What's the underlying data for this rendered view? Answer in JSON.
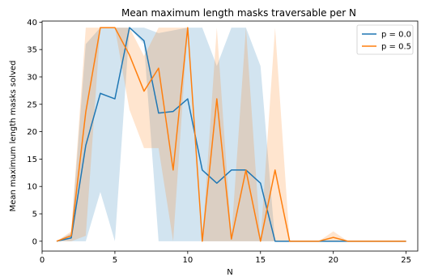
{
  "chart_data": {
    "type": "line",
    "title": "Mean maximum length masks traversable per N",
    "xlabel": "N",
    "ylabel": "Mean maximum length masks solved",
    "xlim": [
      0,
      25.8
    ],
    "ylim": [
      -1.8,
      40.2
    ],
    "xticks": [
      0,
      5,
      10,
      15,
      20,
      25
    ],
    "yticks": [
      0,
      5,
      10,
      15,
      20,
      25,
      30,
      35,
      40
    ],
    "grid": false,
    "legend_position": "top-right",
    "x": [
      1,
      2,
      3,
      4,
      5,
      6,
      7,
      8,
      9,
      10,
      11,
      12,
      13,
      14,
      15,
      16,
      17,
      18,
      19,
      20,
      21,
      22,
      23,
      24,
      25
    ],
    "series": [
      {
        "name": "p = 0.0",
        "color": "#1f77b4",
        "values": [
          0,
          0.6,
          17.5,
          27,
          26,
          39,
          36.6,
          23.4,
          23.7,
          26,
          13,
          10.6,
          13,
          13,
          10.6,
          0,
          0,
          0,
          0,
          0,
          0,
          0,
          0,
          0,
          0
        ],
        "band_lower": [
          0,
          0,
          0,
          9,
          0,
          39,
          36,
          0,
          0,
          0,
          0,
          0,
          0,
          0,
          0,
          0,
          0,
          0,
          0,
          0,
          0,
          0,
          0,
          0,
          0
        ],
        "band_upper": [
          0,
          1.5,
          36,
          39,
          39,
          39,
          39,
          38,
          38.5,
          39,
          39,
          32,
          39,
          39,
          32,
          0,
          0,
          0,
          0,
          0,
          0,
          0,
          0,
          0,
          0
        ]
      },
      {
        "name": "p = 0.5",
        "color": "#ff7f0e",
        "values": [
          0,
          1,
          23.6,
          39,
          39,
          34,
          27.4,
          31.6,
          13,
          39,
          0,
          26,
          0.4,
          13,
          0,
          13,
          0,
          0,
          0,
          0.7,
          0,
          0,
          0,
          0,
          0
        ],
        "band_lower": [
          0,
          0,
          1,
          39,
          39,
          24,
          17,
          17,
          0,
          39,
          0,
          0,
          0,
          0,
          0,
          0,
          0,
          0,
          0,
          0,
          0,
          0,
          0,
          0,
          0
        ],
        "band_upper": [
          0,
          1.8,
          39,
          39,
          39,
          39,
          33.8,
          39,
          39,
          39,
          0,
          39,
          0.8,
          39,
          0,
          39,
          0,
          0,
          0,
          1.8,
          0,
          0,
          0,
          0,
          0
        ]
      }
    ]
  }
}
